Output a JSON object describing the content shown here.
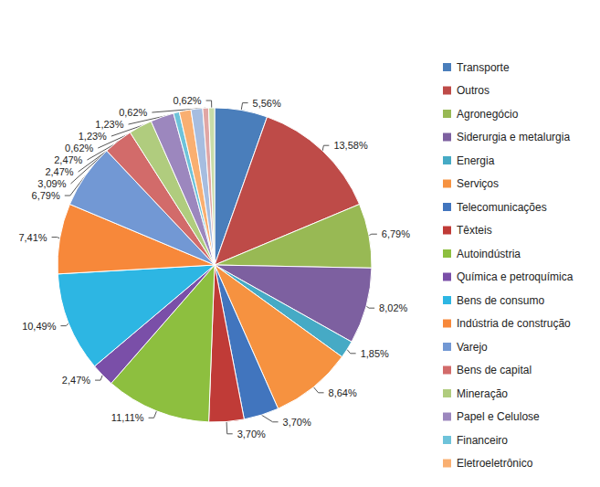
{
  "chart_data": {
    "type": "pie",
    "categories": [
      "Transporte",
      "Outros",
      "Agronegócio",
      "Siderurgia e metalurgia",
      "Energia",
      "Serviços",
      "Telecomunicações",
      "Têxteis",
      "Autoindústria",
      "Química e petroquímica",
      "Bens de consumo",
      "Indústria de construção",
      "Varejo",
      "Bens de capital",
      "Mineração",
      "Papel e Celulose",
      "Financeiro",
      "Eletroeletrônico",
      null,
      null,
      null
    ],
    "values": [
      5.56,
      13.58,
      6.79,
      8.02,
      1.85,
      8.64,
      3.7,
      3.7,
      11.11,
      2.47,
      10.49,
      7.41,
      6.79,
      3.09,
      2.47,
      2.47,
      0.62,
      1.23,
      1.23,
      0.62,
      0.62
    ],
    "value_labels": [
      "5,56%",
      "13,58%",
      "6,79%",
      "8,02%",
      "1,85%",
      "8,64%",
      "3,70%",
      "3,70%",
      "11,11%",
      "2,47%",
      "10,49%",
      "7,41%",
      "6,79%",
      "3,09%",
      "2,47%",
      "2,47%",
      "0,62%",
      "1,23%",
      "1,23%",
      "0,62%",
      "0,62%"
    ],
    "colors": [
      "#4a7ebb",
      "#be4b48",
      "#98b954",
      "#7d60a0",
      "#46aac5",
      "#f69240",
      "#4175be",
      "#c03b37",
      "#8dbf3f",
      "#7a4fa8",
      "#2db6e3",
      "#f7883a",
      "#7298d4",
      "#d26b6a",
      "#b0cc7e",
      "#9c87be",
      "#6ec3da",
      "#f9af71",
      "#a6bde0",
      "#e0a6a5",
      "#c8dca8"
    ],
    "legend": "right",
    "data_labels": true
  }
}
